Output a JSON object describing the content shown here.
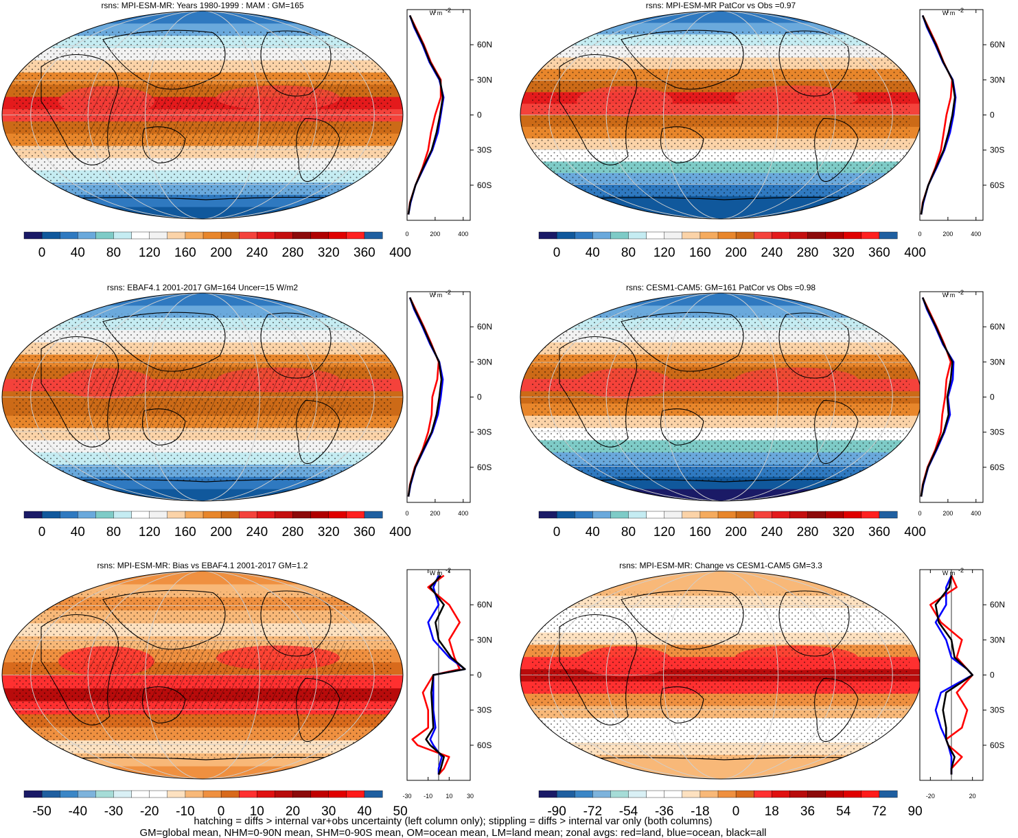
{
  "footer": {
    "line1": "hatching = diffs > internal var+obs uncertainty (left column only); stippling = diffs > internal var only (both columns)",
    "line2": "GM=global mean, NHM=0-90N mean, SHM=0-90S mean, OM=ocean mean, LM=land mean; zonal avgs: red=land, blue=ocean, black=all"
  },
  "colors": {
    "land": "#ff0000",
    "ocean": "#0000ff",
    "all": "#000000",
    "abs_palette": [
      "#1a1a66",
      "#10589c",
      "#2f79c0",
      "#6aa9dc",
      "#7ecbc7",
      "#c5ecf2",
      "#ffffff",
      "#f2f2f2",
      "#fbd3a8",
      "#f5ab5e",
      "#e8862b",
      "#cc6a17",
      "#f4423b",
      "#e41a1c",
      "#c40f0f",
      "#8c0a0a",
      "#b00000",
      "#e00000",
      "#ff2020",
      "#1f5fa0"
    ],
    "diff_palette": [
      "#1a1a66",
      "#1f5fa0",
      "#3b86c6",
      "#7db3dc",
      "#a6dcd7",
      "#d9f0f5",
      "#ffffff",
      "#ffffff",
      "#fde1c0",
      "#f8b878",
      "#ef9040",
      "#d86a1c",
      "#ff3030",
      "#e01010",
      "#b80b0b",
      "#8c0a0a",
      "#c00000",
      "#e00000",
      "#ff1a1a",
      "#1f5fa0"
    ]
  },
  "chart_data": [
    {
      "type": "heatmap",
      "title": "rsns: MPI-ESM-MR: Years 1980-1999 : MAM : GM=165",
      "colorbar_labels": [
        "0",
        "40",
        "80",
        "120",
        "160",
        "200",
        "240",
        "280",
        "320",
        "360",
        "400"
      ],
      "zonal": {
        "unit": "W m",
        "unit_sup": "-2",
        "lat_labels": [
          "60N",
          "30N",
          "0",
          "30S",
          "60S"
        ],
        "x_labels": [
          "0",
          "200",
          "400"
        ],
        "xlim": [
          0,
          450
        ],
        "lat": [
          85,
          75,
          60,
          45,
          30,
          15,
          0,
          -15,
          -30,
          -45,
          -60,
          -75,
          -85
        ],
        "land": [
          20,
          60,
          120,
          170,
          240,
          240,
          200,
          170,
          150,
          110,
          60,
          20,
          10
        ],
        "ocean": [
          20,
          50,
          110,
          160,
          230,
          260,
          240,
          220,
          180,
          120,
          60,
          25,
          10
        ],
        "all": [
          20,
          55,
          115,
          165,
          235,
          255,
          235,
          210,
          175,
          115,
          60,
          22,
          10
        ]
      }
    },
    {
      "type": "heatmap",
      "title": "rsns: MPI-ESM-MR PatCor vs Obs =0.97",
      "colorbar_labels": [
        "0",
        "40",
        "80",
        "120",
        "160",
        "200",
        "240",
        "280",
        "320",
        "360",
        "400"
      ],
      "zonal": {
        "unit": "W m",
        "unit_sup": "-2",
        "lat_labels": [
          "60N",
          "30N",
          "0",
          "30S",
          "60S"
        ],
        "x_labels": [
          "0",
          "200",
          "400"
        ],
        "xlim": [
          0,
          450
        ],
        "lat": [
          85,
          75,
          60,
          45,
          30,
          15,
          0,
          -15,
          -30,
          -45,
          -60,
          -75,
          -85
        ],
        "land": [
          20,
          60,
          120,
          170,
          230,
          220,
          190,
          170,
          150,
          110,
          60,
          20,
          10
        ],
        "ocean": [
          20,
          50,
          110,
          165,
          235,
          255,
          240,
          215,
          175,
          120,
          60,
          25,
          10
        ],
        "all": [
          20,
          55,
          115,
          168,
          232,
          250,
          232,
          205,
          170,
          115,
          60,
          22,
          10
        ]
      }
    },
    {
      "type": "heatmap",
      "title": "rsns: EBAF4.1 2001-2017 GM=164 Uncer=15 W/m2",
      "colorbar_labels": [
        "0",
        "40",
        "80",
        "120",
        "160",
        "200",
        "240",
        "280",
        "320",
        "360",
        "400"
      ],
      "zonal": {
        "unit": "W m",
        "unit_sup": "-2",
        "lat_labels": [
          "60N",
          "30N",
          "0",
          "30S",
          "60S"
        ],
        "x_labels": [
          "0",
          "200",
          "400"
        ],
        "xlim": [
          0,
          450
        ],
        "lat": [
          85,
          75,
          60,
          45,
          30,
          15,
          0,
          -15,
          -30,
          -45,
          -60,
          -75,
          -85
        ],
        "land": [
          20,
          60,
          120,
          175,
          225,
          215,
          180,
          175,
          150,
          110,
          55,
          20,
          10
        ],
        "ocean": [
          20,
          50,
          110,
          165,
          230,
          255,
          240,
          220,
          180,
          120,
          60,
          25,
          10
        ],
        "all": [
          20,
          55,
          115,
          170,
          228,
          245,
          230,
          210,
          175,
          115,
          58,
          22,
          10
        ]
      }
    },
    {
      "type": "heatmap",
      "title": "rsns: CESM1-CAM5: GM=161 PatCor vs Obs =0.98",
      "colorbar_labels": [
        "0",
        "40",
        "80",
        "120",
        "160",
        "200",
        "240",
        "280",
        "320",
        "360",
        "400"
      ],
      "zonal": {
        "unit": "W m",
        "unit_sup": "-2",
        "lat_labels": [
          "60N",
          "30N",
          "0",
          "30S",
          "60S"
        ],
        "x_labels": [
          "0",
          "200",
          "400"
        ],
        "xlim": [
          0,
          450
        ],
        "lat": [
          85,
          75,
          60,
          45,
          30,
          15,
          0,
          -15,
          -30,
          -45,
          -60,
          -75,
          -85
        ],
        "land": [
          20,
          60,
          120,
          175,
          220,
          190,
          180,
          160,
          150,
          110,
          55,
          20,
          10
        ],
        "ocean": [
          20,
          50,
          110,
          165,
          240,
          235,
          200,
          215,
          175,
          120,
          60,
          25,
          10
        ],
        "all": [
          20,
          55,
          115,
          170,
          232,
          220,
          195,
          205,
          170,
          115,
          58,
          22,
          10
        ]
      }
    },
    {
      "type": "heatmap",
      "title": "rsns: MPI-ESM-MR: Bias vs EBAF4.1 2001-2017 GM=1.2",
      "colorbar_labels": [
        "-50",
        "-40",
        "-30",
        "-20",
        "-10",
        "0",
        "10",
        "20",
        "30",
        "40",
        "50"
      ],
      "zonal": {
        "unit": "W m",
        "unit_sup": "-2",
        "lat_labels": [
          "60N",
          "30N",
          "0",
          "30S",
          "60S"
        ],
        "x_labels": [
          "-30",
          "-10",
          "10",
          "30"
        ],
        "xlim": [
          -30,
          30
        ],
        "lat": [
          85,
          75,
          60,
          45,
          30,
          15,
          5,
          0,
          -15,
          -30,
          -45,
          -55,
          -60,
          -70,
          -80,
          -85
        ],
        "land": [
          5,
          -10,
          10,
          20,
          10,
          15,
          20,
          -5,
          -15,
          -10,
          -10,
          -25,
          -20,
          10,
          5,
          0
        ],
        "ocean": [
          0,
          -5,
          0,
          -10,
          -5,
          10,
          25,
          -5,
          -5,
          -5,
          -3,
          -8,
          -5,
          3,
          0,
          0
        ],
        "all": [
          2,
          -8,
          5,
          -3,
          0,
          12,
          25,
          -5,
          -7,
          -6,
          -5,
          -12,
          -8,
          5,
          2,
          0
        ]
      }
    },
    {
      "type": "heatmap",
      "title": "rsns: MPI-ESM-MR: Change vs CESM1-CAM5 GM=3.3",
      "colorbar_labels": [
        "-90",
        "-72",
        "-54",
        "-36",
        "-18",
        "0",
        "18",
        "36",
        "54",
        "72",
        "90"
      ],
      "zonal": {
        "unit": "W m",
        "unit_sup": "-2",
        "lat_labels": [
          "60N",
          "30N",
          "0",
          "30S",
          "60S"
        ],
        "x_labels": [
          "-20",
          "20"
        ],
        "xlim": [
          -30,
          30
        ],
        "lat": [
          85,
          75,
          60,
          45,
          30,
          15,
          5,
          0,
          -15,
          -30,
          -45,
          -55,
          -60,
          -70,
          -80,
          -85
        ],
        "land": [
          0,
          5,
          -20,
          -10,
          10,
          5,
          15,
          20,
          5,
          15,
          10,
          -5,
          -3,
          10,
          0,
          0
        ],
        "ocean": [
          0,
          -5,
          -5,
          -15,
          -5,
          0,
          15,
          20,
          -10,
          -15,
          -10,
          -5,
          -3,
          0,
          0,
          0
        ],
        "all": [
          0,
          -2,
          -15,
          -12,
          0,
          3,
          15,
          20,
          -5,
          -8,
          -5,
          -5,
          -3,
          3,
          0,
          0
        ]
      }
    }
  ]
}
